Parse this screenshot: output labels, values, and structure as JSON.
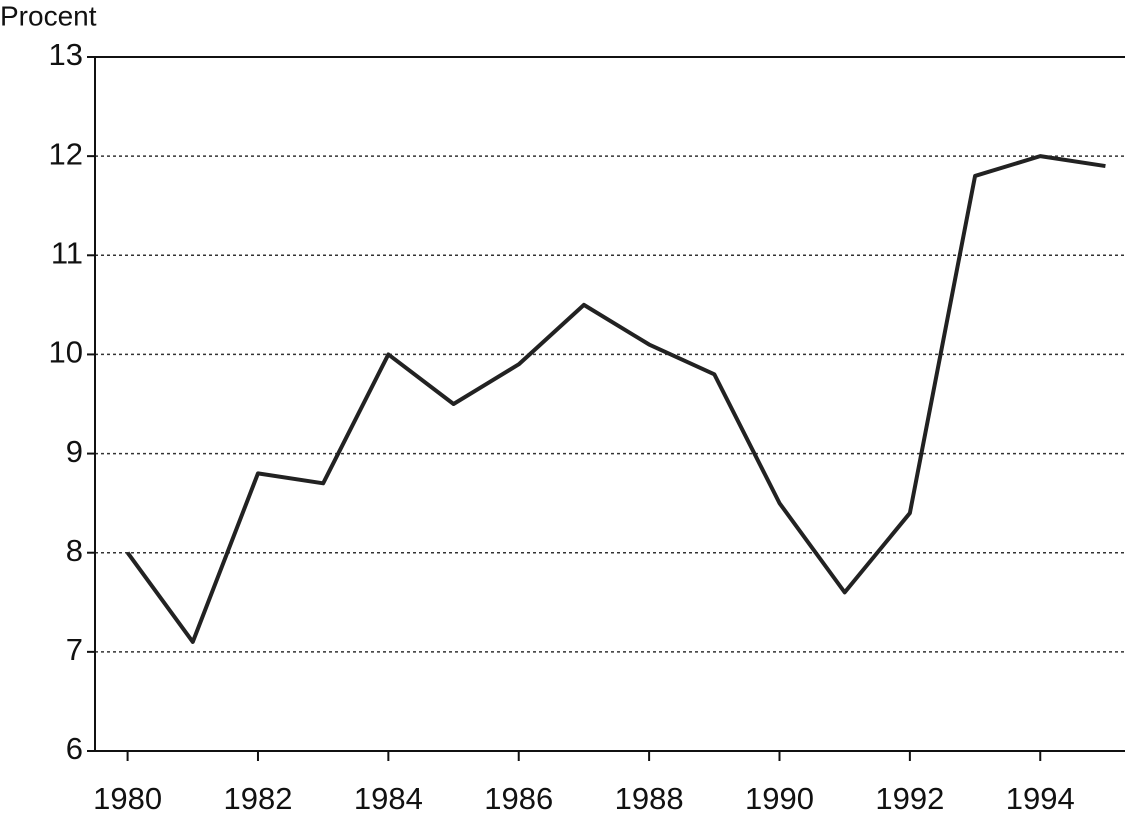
{
  "chart_data": {
    "type": "line",
    "y_label": "Procent",
    "x": [
      1980,
      1981,
      1982,
      1983,
      1984,
      1985,
      1986,
      1987,
      1988,
      1989,
      1990,
      1991,
      1992,
      1993,
      1994,
      1995
    ],
    "series": [
      {
        "color": "#222222",
        "values": [
          8.0,
          7.1,
          8.8,
          8.7,
          10.0,
          9.5,
          9.9,
          10.5,
          10.1,
          9.8,
          8.5,
          7.6,
          8.4,
          11.8,
          12.0,
          11.9
        ]
      }
    ],
    "xlim": [
      1979.5,
      1995.3
    ],
    "xticks": [
      1980,
      1982,
      1984,
      1986,
      1988,
      1990,
      1992,
      1994
    ],
    "ylim": [
      6,
      13
    ],
    "yticks": [
      6,
      7,
      8,
      9,
      10,
      11,
      12,
      13
    ],
    "grid": true
  }
}
